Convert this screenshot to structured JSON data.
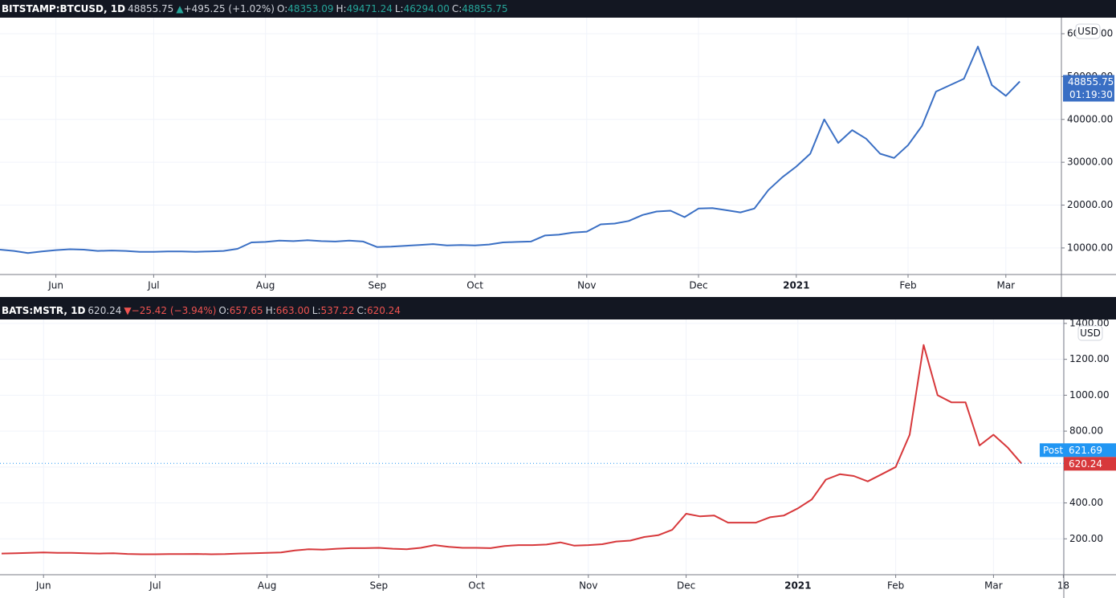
{
  "chart_data": [
    {
      "type": "line",
      "header": {
        "symbol": "BITSTAMP:BTCUSD, 1D",
        "price": "48855.75",
        "change": "+495.25 (+1.02%)",
        "open": "48353.09",
        "high": "49471.24",
        "low": "46294.00",
        "close": "48855.75"
      },
      "direction": "up",
      "currency": "USD",
      "price_tag": {
        "value": 48855.75,
        "label": "48855.75",
        "countdown": "01:19:30"
      },
      "color": "#3a6fc4",
      "grid": true,
      "ylim": [
        3800,
        63750
      ],
      "yticks": [
        {
          "value": 10000,
          "label": "10000.00"
        },
        {
          "value": 20000,
          "label": "20000.00"
        },
        {
          "value": 30000,
          "label": "30000.00"
        },
        {
          "value": 40000,
          "label": "40000.00"
        },
        {
          "value": 50000,
          "label": "50000.00"
        },
        {
          "value": 60000,
          "label": "60000.00"
        }
      ],
      "categories": [
        null,
        null,
        null,
        null,
        "Jun",
        null,
        null,
        null,
        null,
        null,
        null,
        "Jul",
        null,
        null,
        null,
        null,
        null,
        null,
        null,
        "Aug",
        null,
        null,
        null,
        null,
        null,
        null,
        null,
        "Sep",
        null,
        null,
        null,
        null,
        null,
        null,
        "Oct",
        null,
        null,
        null,
        null,
        null,
        null,
        null,
        "Nov",
        null,
        null,
        null,
        null,
        null,
        null,
        null,
        "Dec",
        null,
        null,
        null,
        null,
        null,
        null,
        "2021",
        null,
        null,
        null,
        null,
        null,
        null,
        null,
        "Feb",
        null,
        null,
        null,
        null,
        null,
        null,
        "Mar",
        null
      ],
      "values": [
        9600,
        9300,
        8800,
        9200,
        9500,
        9700,
        9600,
        9300,
        9400,
        9300,
        9100,
        9100,
        9200,
        9200,
        9100,
        9200,
        9300,
        9800,
        11300,
        11400,
        11700,
        11600,
        11800,
        11600,
        11500,
        11700,
        11500,
        10200,
        10300,
        10500,
        10700,
        10900,
        10600,
        10700,
        10600,
        10800,
        11300,
        11400,
        11500,
        12900,
        13100,
        13600,
        13800,
        15500,
        15700,
        16300,
        17700,
        18500,
        18700,
        17200,
        19200,
        19300,
        18800,
        18300,
        19200,
        23500,
        26500,
        29000,
        32000,
        40000,
        34500,
        37500,
        35500,
        32000,
        31000,
        34000,
        38500,
        46500,
        48000,
        49500,
        57000,
        48000,
        45500,
        48855.75
      ]
    },
    {
      "type": "line",
      "header": {
        "symbol": "BATS:MSTR, 1D",
        "price": "620.24",
        "change": "−25.42 (−3.94%)",
        "open": "657.65",
        "high": "663.00",
        "low": "537.22",
        "close": "620.24"
      },
      "direction": "down",
      "currency": "USD",
      "post_tag": {
        "name": "Post",
        "value": 621.69,
        "label": "621.69"
      },
      "price_tag": {
        "value": 620.24,
        "label": "620.24"
      },
      "color": "#d7383b",
      "grid": true,
      "ylim": [
        0,
        1422
      ],
      "yticks": [
        {
          "value": 200,
          "label": "200.00"
        },
        {
          "value": 400,
          "label": "400.00"
        },
        {
          "value": 600,
          "label": "600.00"
        },
        {
          "value": 800,
          "label": "800.00"
        },
        {
          "value": 1000,
          "label": "1000.00"
        },
        {
          "value": 1200,
          "label": "1200.00"
        },
        {
          "value": 1400,
          "label": "1400.00"
        }
      ],
      "categories": [
        null,
        null,
        null,
        "Jun",
        null,
        null,
        null,
        null,
        null,
        null,
        null,
        "Jul",
        null,
        null,
        null,
        null,
        null,
        null,
        null,
        "Aug",
        null,
        null,
        null,
        null,
        null,
        null,
        null,
        "Sep",
        null,
        null,
        null,
        null,
        null,
        null,
        "Oct",
        null,
        null,
        null,
        null,
        null,
        null,
        null,
        "Nov",
        null,
        null,
        null,
        null,
        null,
        null,
        "Dec",
        null,
        null,
        null,
        null,
        null,
        null,
        null,
        "2021",
        null,
        null,
        null,
        null,
        null,
        null,
        "Feb",
        null,
        null,
        null,
        null,
        null,
        null,
        "Mar",
        null,
        null,
        null,
        null,
        "18"
      ],
      "values": [
        118,
        120,
        122,
        124,
        122,
        122,
        120,
        118,
        120,
        116,
        114,
        114,
        115,
        115,
        116,
        114,
        115,
        118,
        120,
        122,
        124,
        135,
        142,
        140,
        145,
        148,
        148,
        150,
        145,
        142,
        150,
        165,
        155,
        150,
        150,
        148,
        160,
        165,
        165,
        168,
        180,
        162,
        165,
        170,
        185,
        190,
        210,
        220,
        250,
        340,
        325,
        330,
        290,
        290,
        290,
        320,
        330,
        370,
        420,
        530,
        560,
        550,
        520,
        560,
        600,
        780,
        1280,
        1000,
        960,
        960,
        720,
        780,
        710,
        620.24,
        null,
        null,
        null
      ]
    }
  ]
}
